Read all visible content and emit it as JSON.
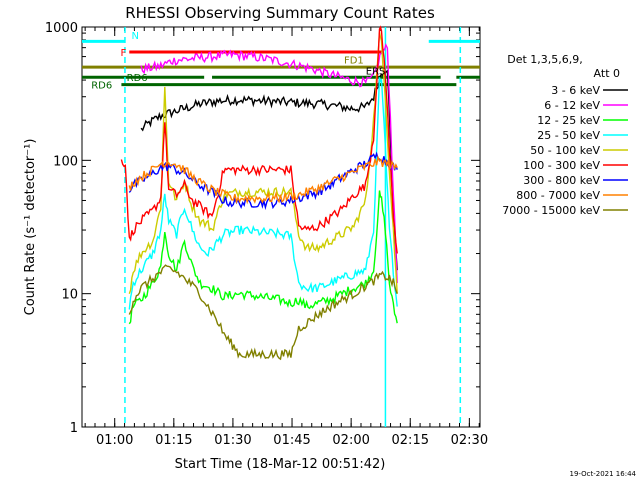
{
  "chart_data": {
    "type": "line",
    "title": "RHESSI Observing Summary Count Rates",
    "xlabel": "Start Time (18-Mar-12 00:51:42)",
    "ylabel": "Count Rate (s⁻¹ detector⁻¹)",
    "yscale": "log",
    "xlim_minutes": [
      0,
      101
    ],
    "ylim": [
      1,
      1000
    ],
    "x_ticks": [
      {
        "minute": 8.3,
        "label": "01:00"
      },
      {
        "minute": 23.3,
        "label": "01:15"
      },
      {
        "minute": 38.3,
        "label": "01:30"
      },
      {
        "minute": 53.3,
        "label": "01:45"
      },
      {
        "minute": 68.3,
        "label": "02:00"
      },
      {
        "minute": 83.3,
        "label": "02:15"
      },
      {
        "minute": 98.3,
        "label": "02:30"
      }
    ],
    "y_ticks": [
      {
        "value": 1,
        "label": "1"
      },
      {
        "value": 10,
        "label": "10"
      },
      {
        "value": 100,
        "label": "100"
      },
      {
        "value": 1000,
        "label": "1000"
      }
    ],
    "legend_header": [
      "Det 1,3,5,6,9,",
      "Att 0"
    ],
    "series": [
      {
        "name": "3 - 6 keV",
        "color": "#000000",
        "x": [
          15,
          17,
          20,
          25,
          30,
          35,
          40,
          45,
          50,
          55,
          60,
          65,
          68,
          72,
          74,
          76,
          77.5,
          79,
          80
        ],
        "y": [
          170,
          190,
          215,
          240,
          265,
          280,
          285,
          280,
          275,
          270,
          265,
          255,
          245,
          250,
          300,
          450,
          500,
          40,
          15
        ]
      },
      {
        "name": "6 - 12 keV",
        "color": "#ff00ff",
        "x": [
          15,
          20,
          23,
          28,
          33,
          38,
          43,
          48,
          53,
          58,
          63,
          68,
          72,
          74,
          76,
          77.5,
          79,
          80
        ],
        "y": [
          480,
          510,
          560,
          580,
          600,
          620,
          600,
          570,
          530,
          490,
          440,
          400,
          380,
          420,
          650,
          700,
          60,
          12
        ]
      },
      {
        "name": "12 - 25 keV",
        "color": "#00ff00",
        "x": [
          12,
          13,
          15,
          18,
          20,
          21,
          22,
          24,
          26,
          28,
          30,
          33,
          36,
          40,
          45,
          50,
          53,
          55,
          57,
          60,
          63,
          66,
          69,
          72,
          74,
          75.5,
          76,
          77,
          78,
          79,
          80
        ],
        "y": [
          6,
          8,
          9,
          12,
          16,
          30,
          20,
          15,
          25,
          16,
          12,
          11,
          9.5,
          10,
          9.5,
          9,
          8.5,
          9,
          8,
          8.5,
          9,
          10,
          11,
          12,
          15,
          55,
          50,
          30,
          12,
          8,
          6
        ]
      },
      {
        "name": "25 - 50 keV",
        "color": "#00ffff",
        "x": [
          12,
          13,
          15,
          18,
          20,
          21,
          22,
          24,
          26,
          28,
          30,
          32,
          36,
          40,
          45,
          50,
          53,
          55,
          57,
          60,
          63,
          66,
          69,
          72,
          74,
          75.5,
          76,
          77,
          78,
          79,
          80
        ],
        "y": [
          8,
          12,
          15,
          20,
          30,
          55,
          35,
          28,
          45,
          30,
          22,
          20,
          28,
          30,
          29,
          28,
          27,
          12,
          11,
          11,
          12,
          13,
          14,
          15,
          30,
          400,
          380,
          120,
          30,
          15,
          8
        ]
      },
      {
        "name": "50 - 100 keV",
        "color": "#cccc00",
        "x": [
          12,
          13,
          15,
          18,
          20,
          21,
          22,
          24,
          26,
          28,
          30,
          32,
          33,
          36,
          40,
          45,
          50,
          53,
          55,
          57,
          60,
          63,
          66,
          69,
          72,
          74,
          75.5,
          76,
          77,
          78,
          79,
          80
        ],
        "y": [
          10,
          15,
          20,
          25,
          45,
          350,
          70,
          50,
          70,
          45,
          35,
          33,
          30,
          55,
          58,
          58,
          58,
          58,
          28,
          22,
          22,
          25,
          28,
          32,
          50,
          200,
          850,
          800,
          300,
          80,
          30,
          10
        ]
      },
      {
        "name": "100 - 300 keV",
        "color": "#ff0000",
        "x": [
          10,
          11,
          12,
          13,
          15,
          18,
          20,
          21,
          22,
          24,
          26,
          28,
          30,
          32,
          33,
          36,
          40,
          45,
          50,
          53,
          55,
          57,
          60,
          63,
          66,
          69,
          72,
          74,
          75.5,
          76,
          77,
          78,
          79,
          80
        ],
        "y": [
          100,
          95,
          25,
          30,
          35,
          42,
          52,
          200,
          60,
          55,
          65,
          50,
          45,
          40,
          38,
          85,
          85,
          85,
          85,
          85,
          32,
          30,
          32,
          37,
          43,
          55,
          65,
          150,
          950,
          900,
          450,
          120,
          40,
          20
        ]
      },
      {
        "name": "300 - 800 keV",
        "color": "#0000ff",
        "x": [
          12,
          13,
          15,
          18,
          20,
          22,
          24,
          26,
          28,
          30,
          32,
          34,
          36,
          38,
          40,
          45,
          50,
          55,
          60,
          63,
          66,
          69,
          72,
          74,
          75.5,
          77,
          78,
          79,
          80
        ],
        "y": [
          60,
          65,
          70,
          80,
          88,
          90,
          85,
          80,
          72,
          65,
          60,
          55,
          50,
          48,
          48,
          48,
          48,
          52,
          58,
          65,
          75,
          85,
          95,
          105,
          110,
          100,
          95,
          90,
          85
        ]
      },
      {
        "name": "800 - 7000 keV",
        "color": "#ff8000",
        "x": [
          12,
          13,
          15,
          18,
          20,
          22,
          24,
          26,
          28,
          30,
          32,
          34,
          36,
          38,
          40,
          45,
          50,
          55,
          60,
          63,
          66,
          69,
          72,
          74,
          75.5,
          77,
          78,
          79,
          80
        ],
        "y": [
          62,
          68,
          75,
          85,
          95,
          98,
          93,
          85,
          75,
          68,
          62,
          58,
          55,
          52,
          52,
          52,
          52,
          55,
          62,
          68,
          75,
          82,
          90,
          95,
          98,
          95,
          92,
          90,
          88
        ]
      },
      {
        "name": "7000 - 15000 keV",
        "color": "#808000",
        "x": [
          12,
          13,
          15,
          18,
          20,
          22,
          24,
          26,
          28,
          30,
          32,
          34,
          36,
          40,
          45,
          50,
          53,
          55,
          57,
          60,
          63,
          66,
          69,
          72,
          74,
          75.5,
          77,
          78,
          79,
          80
        ],
        "y": [
          7,
          9,
          11,
          13,
          14.5,
          15.5,
          14.5,
          13,
          11.5,
          10,
          8,
          6.5,
          5,
          3.5,
          3.5,
          3.5,
          3.5,
          5.5,
          6,
          7,
          8,
          9,
          10,
          11.5,
          12.5,
          13.5,
          13.5,
          13,
          12,
          10
        ]
      }
    ],
    "state_bars": [
      {
        "label": "N",
        "color": "#00ffff",
        "value": 780,
        "segments": [
          [
            0,
            11
          ],
          [
            88,
            101
          ]
        ]
      },
      {
        "label": "F",
        "color": "#ff0000",
        "value": 650,
        "segments": [
          [
            12,
            76
          ]
        ]
      },
      {
        "label": "FD1",
        "color": "#808000",
        "value": 500,
        "segments": [
          [
            0,
            101
          ]
        ]
      },
      {
        "label": "RD6",
        "color": "#006400",
        "value": 420,
        "segments": [
          [
            0,
            31
          ],
          [
            33,
            91
          ],
          [
            95,
            101
          ]
        ]
      },
      {
        "label": "RD6",
        "color": "#006400",
        "value": 370,
        "segments": [
          [
            10,
            95
          ]
        ]
      }
    ],
    "bar_labels": [
      {
        "text": "N",
        "color": "#00ffff",
        "minute": 13.5,
        "value": 870
      },
      {
        "text": "F",
        "color": "#ff0000",
        "minute": 10.5,
        "value": 650
      },
      {
        "text": "FD1",
        "color": "#808000",
        "minute": 69,
        "value": 570
      },
      {
        "text": "ERS",
        "color": "#000000",
        "minute": 74.5,
        "value": 470
      },
      {
        "text": "RD6",
        "color": "#006400",
        "minute": 14,
        "value": 420
      },
      {
        "text": "RD6",
        "color": "#006400",
        "minute": 5,
        "value": 370
      }
    ],
    "vertical_markers": [
      {
        "minute": 10.9,
        "color": "#00ffff",
        "style": "dashed"
      },
      {
        "minute": 77,
        "color": "#00ffff",
        "style": "solid"
      },
      {
        "minute": 96,
        "color": "#00ffff",
        "style": "dashed"
      }
    ],
    "timestamp": "19-Oct-2021 16:44"
  }
}
